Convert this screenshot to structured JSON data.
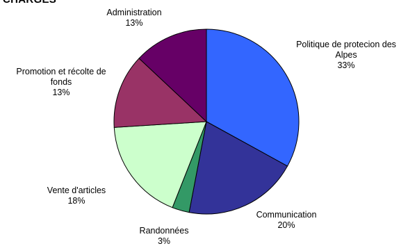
{
  "header": {
    "text": "CHARGES"
  },
  "chart_data": {
    "type": "pie",
    "title": "",
    "slices": [
      {
        "label": "Politique de protecion des Alpes",
        "label_lines": [
          "Politique de protecion des",
          "Alpes"
        ],
        "value": 33,
        "value_text": "33%",
        "color": "#3366FF"
      },
      {
        "label": "Communication",
        "label_lines": [
          "Communication"
        ],
        "value": 20,
        "value_text": "20%",
        "color": "#333399"
      },
      {
        "label": "Randonnées",
        "label_lines": [
          "Randonnées"
        ],
        "value": 3,
        "value_text": "3%",
        "color": "#339966"
      },
      {
        "label": "Vente d'articles",
        "label_lines": [
          "Vente d'articles"
        ],
        "value": 18,
        "value_text": "18%",
        "color": "#CCFFCC"
      },
      {
        "label": "Promotion et récolte de fonds",
        "label_lines": [
          "Promotion et récolte de",
          "fonds"
        ],
        "value": 13,
        "value_text": "13%",
        "color": "#993366"
      },
      {
        "label": "Administration",
        "label_lines": [
          "Administration"
        ],
        "value": 13,
        "value_text": "13%",
        "color": "#660066"
      }
    ]
  }
}
